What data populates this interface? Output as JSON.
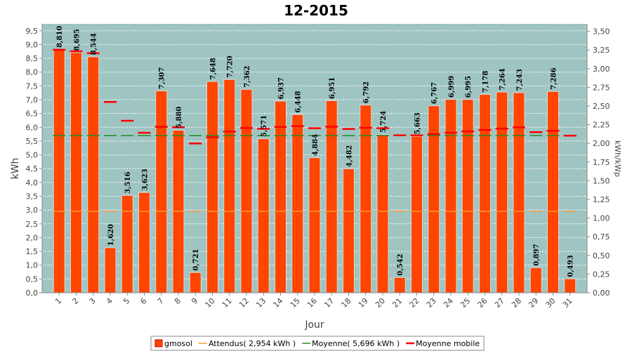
{
  "chart_data": {
    "type": "bar",
    "title": "12-2015",
    "xlabel": "Jour",
    "ylabel": "kWh",
    "ylabel_right": "kWh/kWp",
    "ylim": [
      0,
      9.75
    ],
    "ylim_right": [
      0,
      3.6
    ],
    "grid": true,
    "legend_position": "bottom",
    "y_ticks": [
      "0,0",
      "0,5",
      "1,0",
      "1,5",
      "2,0",
      "2,5",
      "3,0",
      "3,5",
      "4,0",
      "4,5",
      "5,0",
      "5,5",
      "6,0",
      "6,5",
      "7,0",
      "7,5",
      "8,0",
      "8,5",
      "9,0",
      "9,5"
    ],
    "y_ticks_right": [
      "0,00",
      "0,25",
      "0,50",
      "0,75",
      "1,00",
      "1,25",
      "1,50",
      "1,75",
      "2,00",
      "2,25",
      "2,50",
      "2,75",
      "3,00",
      "3,25",
      "3,50"
    ],
    "categories": [
      "1",
      "2",
      "3",
      "4",
      "5",
      "6",
      "7",
      "8",
      "9",
      "10",
      "11",
      "12",
      "13",
      "14",
      "15",
      "16",
      "17",
      "18",
      "19",
      "20",
      "21",
      "22",
      "23",
      "24",
      "25",
      "26",
      "27",
      "28",
      "29",
      "30",
      "31"
    ],
    "series": [
      {
        "name": "gmosol",
        "color": "#ff4500",
        "values": [
          8.81,
          8.695,
          8.544,
          1.62,
          3.516,
          3.623,
          7.307,
          5.88,
          0.721,
          7.648,
          7.72,
          7.362,
          5.571,
          6.937,
          6.448,
          4.884,
          6.951,
          4.482,
          6.792,
          5.724,
          0.542,
          5.663,
          6.767,
          6.999,
          6.995,
          7.178,
          7.264,
          7.243,
          0.897,
          7.286,
          0.493
        ],
        "labels": [
          "8,810",
          "8,695",
          "8,544",
          "1,620",
          "3,516",
          "3,623",
          "7,307",
          "5,880",
          "0,721",
          "7,648",
          "7,720",
          "7,362",
          "5,571",
          "6,937",
          "6,448",
          "4,884",
          "6,951",
          "4,482",
          "6,792",
          "5,724",
          "0,542",
          "5,663",
          "6,767",
          "6,999",
          "6,995",
          "7,178",
          "7,264",
          "7,243",
          "0,897",
          "7,286",
          "0,493"
        ]
      },
      {
        "name": "Attendus( 2,954 kWh )",
        "color": "#ff9933",
        "values": [
          2.954,
          2.954,
          2.954,
          2.954,
          2.954,
          2.954,
          2.954,
          2.954,
          2.954,
          2.954,
          2.954,
          2.954,
          2.954,
          2.954,
          2.954,
          2.954,
          2.954,
          2.954,
          2.954,
          2.954,
          2.954,
          2.954,
          2.954,
          2.954,
          2.954,
          2.954,
          2.954,
          2.954,
          2.954,
          2.954,
          2.954
        ]
      },
      {
        "name": "Moyenne( 5,696 kWh )",
        "color": "#228b22",
        "values": [
          5.696,
          5.696,
          5.696,
          5.696,
          5.696,
          5.696,
          5.696,
          5.696,
          5.696,
          5.696,
          5.696,
          5.696,
          5.696,
          5.696,
          5.696,
          5.696,
          5.696,
          5.696,
          5.696,
          5.696,
          5.696,
          5.696,
          5.696,
          5.696,
          5.696,
          5.696,
          5.696,
          5.696,
          5.696,
          5.696,
          5.696
        ]
      },
      {
        "name": "Moyenne mobile",
        "color": "#ff0000",
        "values": [
          8.81,
          8.753,
          8.683,
          6.917,
          6.237,
          5.801,
          6.016,
          6.0,
          5.414,
          5.637,
          5.847,
          5.973,
          5.943,
          6.012,
          6.041,
          5.968,
          6.022,
          5.937,
          5.981,
          5.968,
          5.71,
          5.708,
          5.752,
          5.804,
          5.851,
          5.902,
          5.951,
          5.997,
          5.822,
          5.871,
          5.697
        ]
      }
    ]
  }
}
